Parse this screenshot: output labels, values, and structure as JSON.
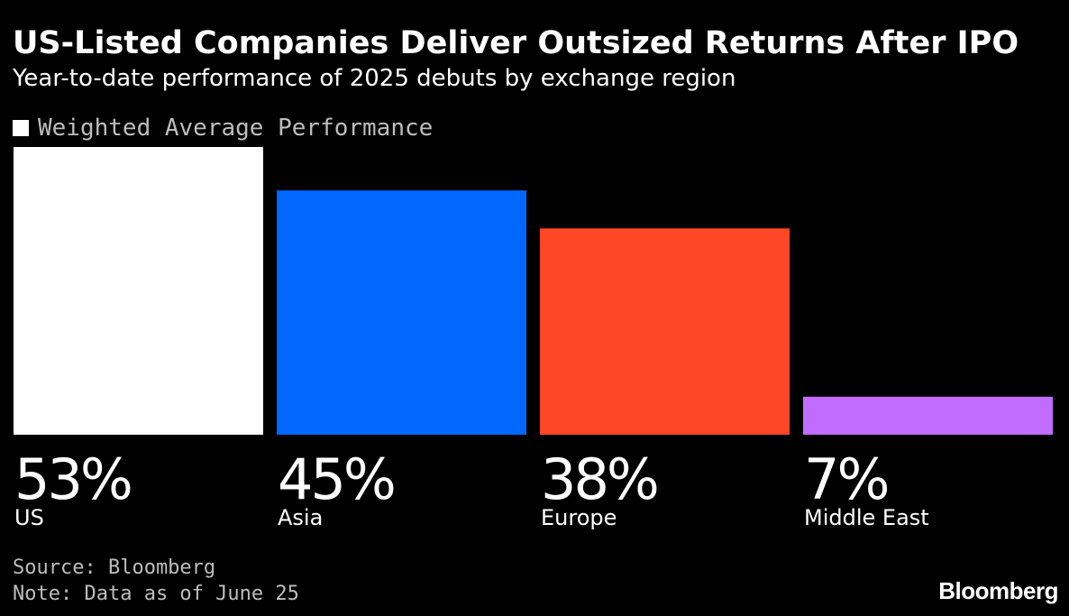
{
  "chart_data": {
    "type": "bar",
    "title": "US-Listed Companies Deliver Outsized Returns After IPO",
    "subtitle": "Year-to-date performance of 2025 debuts by exchange region",
    "legend": {
      "placement": "top-left",
      "entries": [
        {
          "label": "Weighted Average Performance",
          "color": "#ffffff"
        }
      ]
    },
    "categories": [
      "US",
      "Asia",
      "Europe",
      "Middle East"
    ],
    "values": [
      53,
      45,
      38,
      7
    ],
    "value_labels": [
      "53%",
      "45%",
      "38%",
      "7%"
    ],
    "colors": [
      "#ffffff",
      "#0068ff",
      "#ff4626",
      "#c16bff"
    ],
    "unit": "%",
    "ylim": [
      0,
      53
    ],
    "grid": false
  },
  "footer": {
    "source": "Source: Bloomberg",
    "note": "Note: Data as of June 25"
  },
  "brand": "Bloomberg",
  "colors": {
    "background": "#000000",
    "text": "#ffffff",
    "muted_text": "#bdbdbd"
  }
}
